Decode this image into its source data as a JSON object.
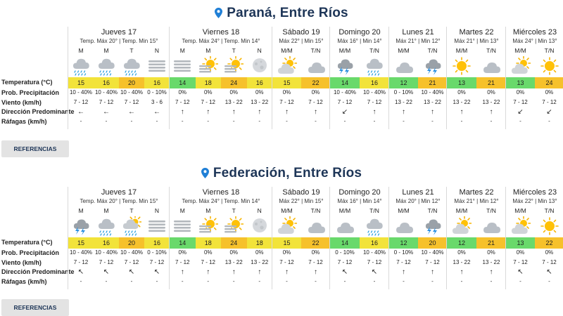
{
  "row_labels": [
    "Temperatura (°C)",
    "Prob. Precipitación",
    "Viento (km/h)",
    "Dirección Predominante",
    "Ráfagas (km/h)"
  ],
  "references_label": "REFERENCIAS",
  "temp_colors": {
    "y": "#f2e33a",
    "g": "#9fdc3b",
    "o": "#f6c12b",
    "gn": "#69d96b"
  },
  "locations": [
    {
      "name": "Paraná, Entre Ríos",
      "days": [
        {
          "name": "Jueves 17",
          "sub": "Temp. Máx 20° | Temp. Min 15°",
          "cols": [
            {
              "p": "M",
              "icon": "rain",
              "t": "15",
              "c": "y",
              "prob": "10 - 40%",
              "wind": "7 - 12",
              "dir": "←",
              "gust": "-"
            },
            {
              "p": "M",
              "icon": "rain",
              "t": "16",
              "c": "y",
              "prob": "10 - 40%",
              "wind": "7 - 12",
              "dir": "←",
              "gust": "-"
            },
            {
              "p": "T",
              "icon": "rain",
              "t": "20",
              "c": "o",
              "prob": "10 - 40%",
              "wind": "7 - 12",
              "dir": "←",
              "gust": "-"
            },
            {
              "p": "N",
              "icon": "fog",
              "t": "16",
              "c": "y",
              "prob": "0 - 10%",
              "wind": "3 - 6",
              "dir": "←",
              "gust": "-"
            }
          ]
        },
        {
          "name": "Viernes 18",
          "sub": "Temp. Máx 24° | Temp. Min 14°",
          "cols": [
            {
              "p": "M",
              "icon": "fog",
              "t": "14",
              "c": "gn",
              "prob": "0%",
              "wind": "7 - 12",
              "dir": "↑",
              "gust": "-"
            },
            {
              "p": "M",
              "icon": "sun-fog",
              "t": "18",
              "c": "y",
              "prob": "0%",
              "wind": "7 - 12",
              "dir": "↑",
              "gust": "-"
            },
            {
              "p": "T",
              "icon": "sun-fog",
              "t": "24",
              "c": "o",
              "prob": "0%",
              "wind": "13 - 22",
              "dir": "↑",
              "gust": "-"
            },
            {
              "p": "N",
              "icon": "moon-cloud",
              "t": "16",
              "c": "y",
              "prob": "0%",
              "wind": "13 - 22",
              "dir": "↑",
              "gust": "-"
            }
          ]
        },
        {
          "name": "Sábado 19",
          "sub": "Máx 22° | Min 15°",
          "cols": [
            {
              "p": "M/M",
              "icon": "sun-cloud",
              "t": "15",
              "c": "y",
              "prob": "0%",
              "wind": "7 - 12",
              "dir": "↑",
              "gust": "-"
            },
            {
              "p": "T/N",
              "icon": "cloud",
              "t": "22",
              "c": "o",
              "prob": "0%",
              "wind": "7 - 12",
              "dir": "↑",
              "gust": "-"
            }
          ]
        },
        {
          "name": "Domingo 20",
          "sub": "Máx 16° | Min 14°",
          "cols": [
            {
              "p": "M/M",
              "icon": "storm",
              "t": "14",
              "c": "gn",
              "prob": "10 - 40%",
              "wind": "7 - 12",
              "dir": "↙",
              "gust": "-"
            },
            {
              "p": "T/N",
              "icon": "rain",
              "t": "16",
              "c": "y",
              "prob": "10 - 40%",
              "wind": "7 - 12",
              "dir": "↑",
              "gust": "-"
            }
          ]
        },
        {
          "name": "Lunes 21",
          "sub": "Máx 21° | Min 12°",
          "cols": [
            {
              "p": "M/M",
              "icon": "cloud",
              "t": "12",
              "c": "gn",
              "prob": "0 - 10%",
              "wind": "13 - 22",
              "dir": "↑",
              "gust": "-"
            },
            {
              "p": "T/N",
              "icon": "storm",
              "t": "21",
              "c": "o",
              "prob": "10 - 40%",
              "wind": "13 - 22",
              "dir": "↑",
              "gust": "-"
            }
          ]
        },
        {
          "name": "Martes 22",
          "sub": "Máx 21° | Min 13°",
          "cols": [
            {
              "p": "M/M",
              "icon": "sun",
              "t": "13",
              "c": "gn",
              "prob": "0%",
              "wind": "13 - 22",
              "dir": "↑",
              "gust": "-"
            },
            {
              "p": "T/N",
              "icon": "cloud",
              "t": "21",
              "c": "o",
              "prob": "0%",
              "wind": "13 - 22",
              "dir": "↑",
              "gust": "-"
            }
          ]
        },
        {
          "name": "Miércoles 23",
          "sub": "Máx 24° | Min 13°",
          "cols": [
            {
              "p": "M/M",
              "icon": "sun-cloud",
              "t": "13",
              "c": "gn",
              "prob": "0%",
              "wind": "7 - 12",
              "dir": "↙",
              "gust": "-"
            },
            {
              "p": "T/N",
              "icon": "sun",
              "t": "24",
              "c": "o",
              "prob": "0%",
              "wind": "7 - 12",
              "dir": "↙",
              "gust": "-"
            }
          ]
        }
      ]
    },
    {
      "name": "Federación, Entre Ríos",
      "days": [
        {
          "name": "Jueves 17",
          "sub": "Temp. Máx 20° | Temp. Min 15°",
          "cols": [
            {
              "p": "M",
              "icon": "storm",
              "t": "15",
              "c": "y",
              "prob": "10 - 40%",
              "wind": "7 - 12",
              "dir": "↖",
              "gust": "-"
            },
            {
              "p": "M",
              "icon": "rain",
              "t": "16",
              "c": "y",
              "prob": "10 - 40%",
              "wind": "7 - 12",
              "dir": "↖",
              "gust": "-"
            },
            {
              "p": "T",
              "icon": "sun-rain",
              "t": "20",
              "c": "o",
              "prob": "10 - 40%",
              "wind": "7 - 12",
              "dir": "↖",
              "gust": "-"
            },
            {
              "p": "N",
              "icon": "fog",
              "t": "16",
              "c": "y",
              "prob": "0 - 10%",
              "wind": "7 - 12",
              "dir": "↖",
              "gust": "-"
            }
          ]
        },
        {
          "name": "Viernes 18",
          "sub": "Temp. Máx 24° | Temp. Min 14°",
          "cols": [
            {
              "p": "M",
              "icon": "fog",
              "t": "14",
              "c": "gn",
              "prob": "0%",
              "wind": "7 - 12",
              "dir": "↑",
              "gust": "-"
            },
            {
              "p": "M",
              "icon": "sun-fog",
              "t": "18",
              "c": "y",
              "prob": "0%",
              "wind": "7 - 12",
              "dir": "↑",
              "gust": "-"
            },
            {
              "p": "T",
              "icon": "sun-fog",
              "t": "24",
              "c": "o",
              "prob": "0%",
              "wind": "13 - 22",
              "dir": "↑",
              "gust": "-"
            },
            {
              "p": "N",
              "icon": "moon-cloud",
              "t": "18",
              "c": "y",
              "prob": "0%",
              "wind": "13 - 22",
              "dir": "↑",
              "gust": "-"
            }
          ]
        },
        {
          "name": "Sábado 19",
          "sub": "Máx 22° | Min 15°",
          "cols": [
            {
              "p": "M/M",
              "icon": "sun-cloud",
              "t": "15",
              "c": "y",
              "prob": "0%",
              "wind": "7 - 12",
              "dir": "↑",
              "gust": "-"
            },
            {
              "p": "T/N",
              "icon": "cloud",
              "t": "22",
              "c": "o",
              "prob": "0%",
              "wind": "7 - 12",
              "dir": "↑",
              "gust": "-"
            }
          ]
        },
        {
          "name": "Domingo 20",
          "sub": "Máx 16° | Min 14°",
          "cols": [
            {
              "p": "M/M",
              "icon": "cloud",
              "t": "14",
              "c": "gn",
              "prob": "0 - 10%",
              "wind": "7 - 12",
              "dir": "↖",
              "gust": "-"
            },
            {
              "p": "T/N",
              "icon": "rain",
              "t": "16",
              "c": "y",
              "prob": "10 - 40%",
              "wind": "7 - 12",
              "dir": "↖",
              "gust": "-"
            }
          ]
        },
        {
          "name": "Lunes 21",
          "sub": "Máx 20° | Min 12°",
          "cols": [
            {
              "p": "M/M",
              "icon": "cloud",
              "t": "12",
              "c": "gn",
              "prob": "0 - 10%",
              "wind": "7 - 12",
              "dir": "↑",
              "gust": "-"
            },
            {
              "p": "T/N",
              "icon": "storm",
              "t": "20",
              "c": "o",
              "prob": "10 - 40%",
              "wind": "7 - 12",
              "dir": "↑",
              "gust": "-"
            }
          ]
        },
        {
          "name": "Martes 22",
          "sub": "Máx 21° | Min 12°",
          "cols": [
            {
              "p": "M/M",
              "icon": "sun-cloud",
              "t": "12",
              "c": "gn",
              "prob": "0%",
              "wind": "13 - 22",
              "dir": "↑",
              "gust": "-"
            },
            {
              "p": "T/N",
              "icon": "cloud",
              "t": "21",
              "c": "o",
              "prob": "0%",
              "wind": "13 - 22",
              "dir": "↑",
              "gust": "-"
            }
          ]
        },
        {
          "name": "Miércoles 23",
          "sub": "Máx 22° | Min 13°",
          "cols": [
            {
              "p": "M/M",
              "icon": "sun-cloud",
              "t": "13",
              "c": "gn",
              "prob": "0%",
              "wind": "7 - 12",
              "dir": "↖",
              "gust": "-"
            },
            {
              "p": "T/N",
              "icon": "sun",
              "t": "22",
              "c": "o",
              "prob": "0%",
              "wind": "7 - 12",
              "dir": "↖",
              "gust": "-"
            }
          ]
        }
      ]
    }
  ]
}
